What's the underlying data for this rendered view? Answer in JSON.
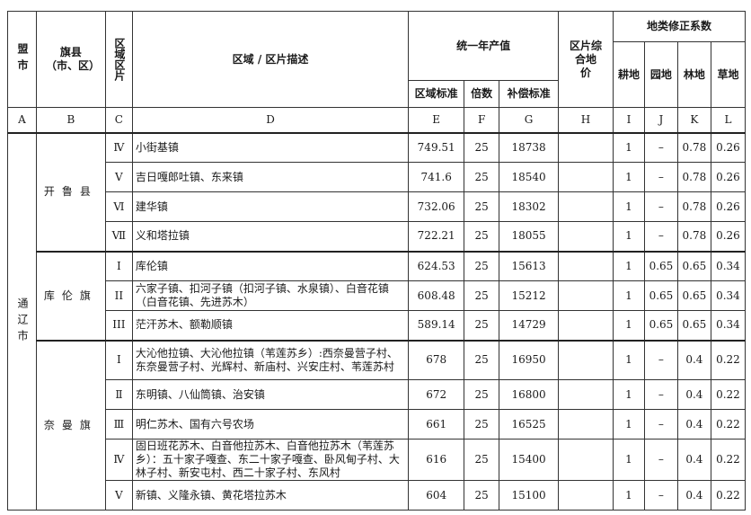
{
  "header": {
    "league": "盟市",
    "county": "旗县（市、区）",
    "zone": "区域区片",
    "desc": "区域 / 区片描述",
    "annual": "统一年产值",
    "zone_std": "区域标准",
    "multiple": "倍数",
    "comp_std": "补偿标准",
    "price": "区片综合地　价",
    "coef": "地类修正系数",
    "coef_cols": [
      "耕地",
      "园地",
      "林地",
      "草地"
    ]
  },
  "letters": [
    "A",
    "B",
    "C",
    "D",
    "E",
    "F",
    "G",
    "H",
    "I",
    "J",
    "K",
    "L"
  ],
  "league_name": "通辽市",
  "groups": [
    {
      "county": "开鲁县",
      "rows": [
        {
          "zone": "Ⅳ",
          "desc": "小街基镇",
          "e": "749.51",
          "f": "25",
          "g": "18738",
          "h": "",
          "i": "1",
          "j": "–",
          "k": "0.78",
          "l": "0.26"
        },
        {
          "zone": "Ⅴ",
          "desc": "吉日嘎郎吐镇、东来镇",
          "e": "741.6",
          "f": "25",
          "g": "18540",
          "h": "",
          "i": "1",
          "j": "–",
          "k": "0.78",
          "l": "0.26"
        },
        {
          "zone": "Ⅵ",
          "desc": "建华镇",
          "e": "732.06",
          "f": "25",
          "g": "18302",
          "h": "",
          "i": "1",
          "j": "–",
          "k": "0.78",
          "l": "0.26"
        },
        {
          "zone": "Ⅶ",
          "desc": "义和塔拉镇",
          "e": "722.21",
          "f": "25",
          "g": "18055",
          "h": "",
          "i": "1",
          "j": "–",
          "k": "0.78",
          "l": "0.26"
        }
      ]
    },
    {
      "county": "库伦旗",
      "rows": [
        {
          "zone": "I",
          "desc": "库伦镇",
          "e": "624.53",
          "f": "25",
          "g": "15613",
          "h": "",
          "i": "1",
          "j": "0.65",
          "k": "0.65",
          "l": "0.34"
        },
        {
          "zone": "II",
          "desc": "六家子镇、扣河子镇（扣河子镇、水泉镇）、白音花镇（白音花镇、先进苏木）",
          "e": "608.48",
          "f": "25",
          "g": "15212",
          "h": "",
          "i": "1",
          "j": "0.65",
          "k": "0.65",
          "l": "0.34"
        },
        {
          "zone": "III",
          "desc": "茫汗苏木、额勒顺镇",
          "e": "589.14",
          "f": "25",
          "g": "14729",
          "h": "",
          "i": "1",
          "j": "0.65",
          "k": "0.65",
          "l": "0.34"
        }
      ]
    },
    {
      "county": "奈曼旗",
      "rows": [
        {
          "zone": "Ⅰ",
          "desc": "大沁他拉镇、大沁他拉镇（苇莲苏乡）:西奈曼营子村、东奈曼营子村、光辉村、新庙村、兴安庄村、苇莲苏村",
          "e": "678",
          "f": "25",
          "g": "16950",
          "h": "",
          "i": "1",
          "j": "–",
          "k": "0.4",
          "l": "0.22"
        },
        {
          "zone": "Ⅱ",
          "desc": "东明镇、八仙筒镇、治安镇",
          "e": "672",
          "f": "25",
          "g": "16800",
          "h": "",
          "i": "1",
          "j": "–",
          "k": "0.4",
          "l": "0.22"
        },
        {
          "zone": "Ⅲ",
          "desc": "明仁苏木、国有六号农场",
          "e": "661",
          "f": "25",
          "g": "16525",
          "h": "",
          "i": "1",
          "j": "–",
          "k": "0.4",
          "l": "0.22"
        },
        {
          "zone": "Ⅳ",
          "desc": "固日班花苏木、白音他拉苏木、白音他拉苏木（苇莲苏乡）：五十家子嘎查、东二十家子嘎查、卧风甸子村、大林子村、新安屯村、西二十家子村、东风村",
          "e": "616",
          "f": "25",
          "g": "15400",
          "h": "",
          "i": "1",
          "j": "–",
          "k": "0.4",
          "l": "0.22"
        },
        {
          "zone": "Ⅴ",
          "desc": "新镇、义隆永镇、黄花塔拉苏木",
          "e": "604",
          "f": "25",
          "g": "15100",
          "h": "",
          "i": "1",
          "j": "–",
          "k": "0.4",
          "l": "0.22"
        }
      ]
    }
  ]
}
